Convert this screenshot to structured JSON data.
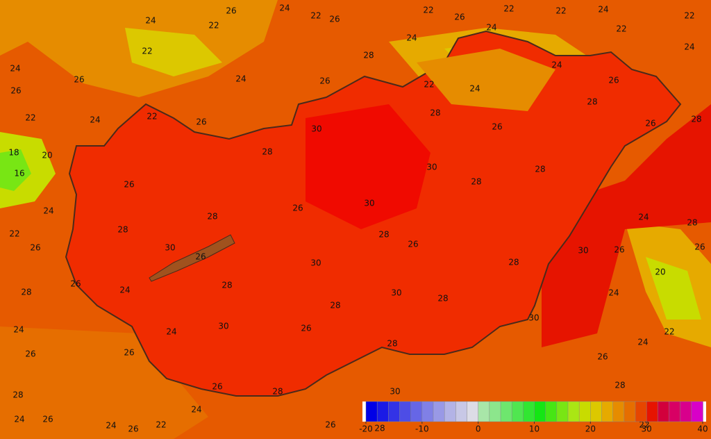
{
  "contour_labels": [
    26,
    24,
    22,
    26,
    22,
    26,
    22,
    22,
    24,
    22,
    22,
    24,
    22,
    22,
    24,
    26,
    24,
    26,
    28,
    24,
    24,
    24,
    24,
    26,
    22,
    24,
    22,
    26,
    22,
    24,
    26,
    28,
    26,
    28,
    26,
    28,
    18,
    20,
    16,
    30,
    28,
    30,
    28,
    26,
    28,
    24,
    30,
    26,
    28,
    22,
    28,
    24,
    28,
    26,
    28,
    26,
    30,
    26,
    30,
    30,
    26,
    26,
    28,
    26,
    28,
    24,
    28,
    20,
    30,
    28,
    28,
    24,
    24,
    30,
    26,
    30,
    24,
    22,
    24,
    28,
    26,
    26,
    26,
    26,
    28,
    28,
    30,
    28,
    24,
    24,
    26,
    24,
    26,
    22,
    26,
    28,
    22
  ],
  "colorbar": {
    "ticks": [
      -20,
      -10,
      0,
      10,
      20,
      30,
      40
    ],
    "colors": [
      "#0000e6",
      "#1a1ae6",
      "#3333e6",
      "#4d4de6",
      "#6666e6",
      "#8080e6",
      "#9999e6",
      "#b3b3e6",
      "#c8c8e6",
      "#dcdce6",
      "#a8e6a8",
      "#8ce68c",
      "#6ee66e",
      "#50e650",
      "#32e632",
      "#14e614",
      "#46e614",
      "#78e614",
      "#aae614",
      "#c8dc00",
      "#dcc800",
      "#e6aa00",
      "#e68c00",
      "#e66e00",
      "#e64600",
      "#e61400",
      "#d2003c",
      "#d80064",
      "#d8008c",
      "#d800c8"
    ]
  }
}
